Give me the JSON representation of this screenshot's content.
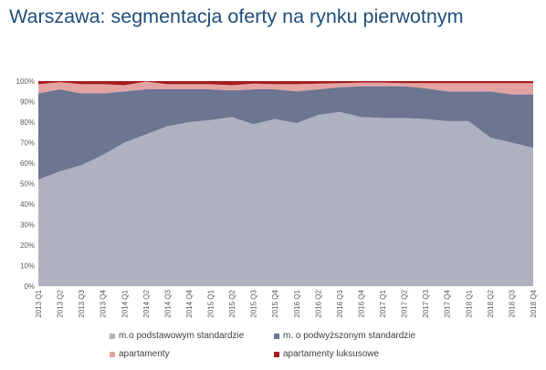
{
  "title": "Warszawa: segmentacja oferty na rynku pierwotnym",
  "chart_data": {
    "type": "area",
    "stacked": true,
    "grid": false,
    "legend_position": "bottom",
    "ylim": [
      0,
      100
    ],
    "y_ticks": [
      "0%",
      "10%",
      "20%",
      "30%",
      "40%",
      "50%",
      "60%",
      "70%",
      "80%",
      "90%",
      "100%"
    ],
    "categories": [
      "2013 Q1",
      "2013 Q2",
      "2013 Q3",
      "2013 Q4",
      "2014 Q1",
      "2014 Q2",
      "2014 Q3",
      "2014 Q4",
      "2015 Q1",
      "2015 Q2",
      "2015 Q3",
      "2015 Q4",
      "2016 Q1",
      "2016 Q2",
      "2016 Q3",
      "2016 Q4",
      "2017 Q1",
      "2017 Q2",
      "2017 Q3",
      "2017 Q4",
      "2018 Q1",
      "2018 Q2",
      "2018 Q3",
      "2018 Q4"
    ],
    "series": [
      {
        "name": "m.o podstawowym standardzie",
        "color": "#aeb2c0",
        "values": [
          52,
          56,
          59,
          64,
          70,
          74,
          78,
          80,
          81,
          82.5,
          79,
          81.5,
          79.5,
          83.5,
          85,
          82.5,
          82,
          82,
          81.5,
          80.5,
          80.5,
          72.5,
          70,
          67.5
        ]
      },
      {
        "name": "m. o podwyższonym standardzie",
        "color": "#6c7591",
        "values": [
          42,
          40,
          35,
          30,
          25,
          22,
          18,
          16,
          15,
          13,
          17,
          14.5,
          15.5,
          12.5,
          12,
          15,
          15.5,
          15.5,
          15,
          14.5,
          14.5,
          22.5,
          23.5,
          26
        ]
      },
      {
        "name": "apartamenty",
        "color": "#e4a3a3",
        "values": [
          4.5,
          3.5,
          4.5,
          4.5,
          3,
          3.8,
          2.5,
          2.5,
          2.5,
          2.5,
          2.8,
          2.5,
          3.5,
          2.8,
          2,
          1.8,
          1.8,
          1.5,
          2.5,
          4,
          4,
          4,
          5.5,
          5.5
        ]
      },
      {
        "name": "apartamenty luksusowe",
        "color": "#a51e1e",
        "values": [
          1.5,
          0.5,
          1.5,
          1.5,
          2,
          0.2,
          1.5,
          1.5,
          1.5,
          2,
          1.2,
          1.5,
          1.5,
          1.2,
          1,
          0.7,
          0.7,
          1,
          1,
          1,
          1,
          1,
          1,
          1
        ]
      }
    ]
  }
}
